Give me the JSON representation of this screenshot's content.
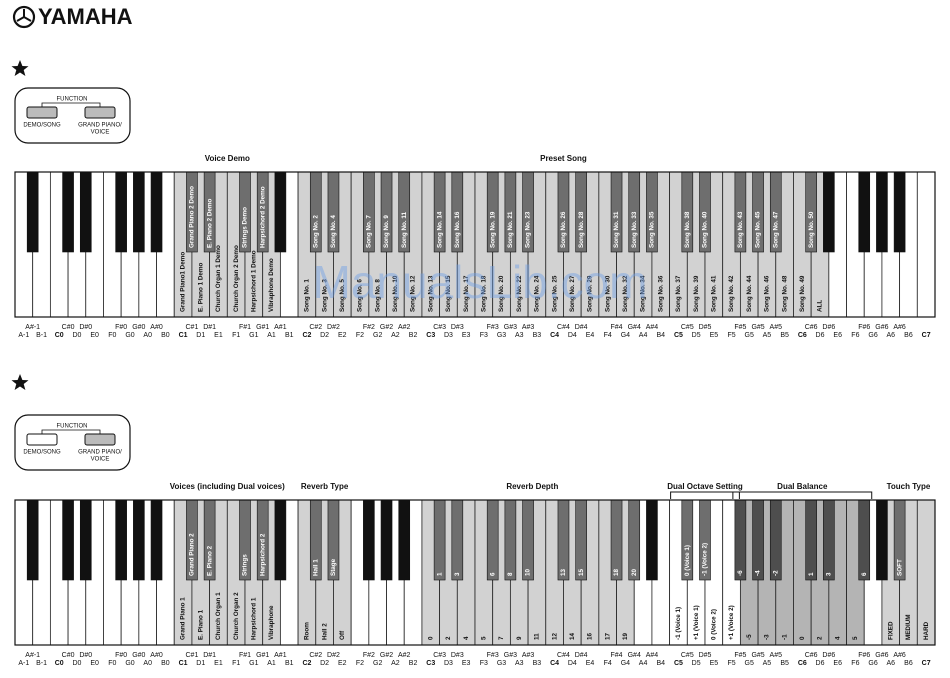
{
  "header": {
    "brand": "YAMAHA"
  },
  "key_names": {
    "white": [
      "A-1",
      "B-1",
      "C0",
      "D0",
      "E0",
      "F0",
      "G0",
      "A0",
      "B0",
      "C1",
      "D1",
      "E1",
      "F1",
      "G1",
      "A1",
      "B1",
      "C2",
      "D2",
      "E2",
      "F2",
      "G2",
      "A2",
      "B2",
      "C3",
      "D3",
      "E3",
      "F3",
      "G3",
      "A3",
      "B3",
      "C4",
      "D4",
      "E4",
      "F4",
      "G4",
      "A4",
      "B4",
      "C5",
      "D5",
      "E5",
      "F5",
      "G5",
      "A5",
      "B5",
      "C6",
      "D6",
      "E6",
      "F6",
      "G6",
      "A6",
      "B6",
      "C7"
    ],
    "black": [
      "A#-1",
      "C#0",
      "D#0",
      "F#0",
      "G#0",
      "A#0",
      "C#1",
      "D#1",
      "F#1",
      "G#1",
      "A#1",
      "C#2",
      "D#2",
      "F#2",
      "G#2",
      "A#2",
      "C#3",
      "D#3",
      "F#3",
      "G#3",
      "A#3",
      "C#4",
      "D#4",
      "F#4",
      "G#4",
      "A#4",
      "C#5",
      "D#5",
      "F#5",
      "G#5",
      "A#5",
      "C#6",
      "D#6",
      "F#6",
      "G#6",
      "A#6"
    ]
  },
  "panels": [
    {
      "title": "FUNCTION",
      "buttons": [
        [
          "DEMO/SONG"
        ],
        [
          "GRAND PIANO/",
          "VOICE"
        ]
      ]
    },
    {
      "title": "FUNCTION",
      "buttons": [
        [
          "DEMO/SONG"
        ],
        [
          "GRAND PIANO/",
          "VOICE"
        ]
      ]
    }
  ],
  "keyboards": [
    {
      "sections": [
        {
          "title": "Voice Demo",
          "start": "C1",
          "color": "#d2d2d2",
          "black_color": "#6e6e6e",
          "labels": [
            "Grand Piano1 Demo",
            "Grand Piano 2 Demo",
            "E. Piano 1 Demo",
            "E. Piano 2 Demo",
            "Church Organ 1 Demo",
            "Church Organ 2 Demo",
            "Strings Demo",
            "Harpsichord 1 Demo",
            "Harpsichord 2 Demo",
            "Vibraphone Demo"
          ]
        },
        {
          "title": "Preset Song",
          "start": "C2",
          "color": "#d2d2d2",
          "black_color": "#6e6e6e",
          "labels": [
            "Song No. 1",
            "Song No. 2",
            "Song No. 3",
            "Song No. 4",
            "Song No. 5",
            "Song No. 6",
            "Song No. 7",
            "Song No. 8",
            "Song No. 9",
            "Song No. 10",
            "Song No. 11",
            "Song No. 12",
            "Song No. 13",
            "Song No. 14",
            "Song No. 15",
            "Song No. 16",
            "Song No. 17",
            "Song No. 18",
            "Song No. 19",
            "Song No. 20",
            "Song No. 21",
            "Song No. 22",
            "Song No. 23",
            "Song No. 24",
            "Song No. 25",
            "Song No. 26",
            "Song No. 27",
            "Song No. 28",
            "Song No. 29",
            "Song No. 30",
            "Song No. 31",
            "Song No. 32",
            "Song No. 33",
            "Song No. 34",
            "Song No. 35",
            "Song No. 36",
            "Song No. 37",
            "Song No. 38",
            "Song No. 39",
            "Song No. 40",
            "Song No. 41",
            "Song No. 42",
            "Song No. 43",
            "Song No. 44",
            "Song No. 45",
            "Song No. 46",
            "Song No. 47",
            "Song No. 48",
            "Song No. 49",
            "Song No. 50",
            "ALL"
          ]
        }
      ]
    },
    {
      "sections": [
        {
          "title": "Voices (including Dual voices)",
          "start": "C1",
          "color": "#d2d2d2",
          "black_color": "#6e6e6e",
          "labels": [
            "Grand Piano 1",
            "Grand Piano 2",
            "E. Piano 1",
            "E. Piano 2",
            "Church Organ 1",
            "Church Organ 2",
            "Strings",
            "Harpsichord 1",
            "Harpsichord 2",
            "Vibraphone"
          ]
        },
        {
          "title": "Reverb Type",
          "start": "C2",
          "color": "#d2d2d2",
          "black_color": "#6e6e6e",
          "labels": [
            "Room",
            "Hall 1",
            "Hall 2",
            "Stage",
            "Off"
          ]
        },
        {
          "title": "Reverb Depth",
          "start": "C3",
          "color": "#d2d2d2",
          "black_color": "#6e6e6e",
          "labels": [
            "0",
            "1",
            "2",
            "3",
            "4",
            "5",
            "6",
            "7",
            "8",
            "9",
            "10",
            "11",
            "12",
            "13",
            "14",
            "15",
            "16",
            "17",
            "18",
            "19",
            "20"
          ]
        },
        {
          "title": "Dual Octave Setting",
          "start": "C5",
          "color": "#ffffff",
          "black_color": "#6e6e6e",
          "bracket": true,
          "labels": [
            "-1 (Voice 1)",
            "0 (Voice 1)",
            "+1 (Voice 1)",
            "-1 (Voice 2)",
            "0 (Voice 2)",
            "+1 (Voice 2)"
          ]
        },
        {
          "title": "Dual Balance",
          "start": "F#5",
          "color": "#b4b4b4",
          "black_color": "#4e4e4e",
          "bracket": true,
          "labels": [
            "-6",
            "-5",
            "-4",
            "-3",
            "-2",
            "-1",
            "0",
            "1",
            "2",
            "3",
            "4",
            "5",
            "6"
          ]
        },
        {
          "title": "Touch Type",
          "start": "A6",
          "color": "#d2d2d2",
          "black_color": "#6e6e6e",
          "labels": [
            "FIXED",
            "SOFT",
            "MEDIUM",
            "HARD"
          ]
        }
      ]
    }
  ],
  "watermark": "ManualsLib.com"
}
